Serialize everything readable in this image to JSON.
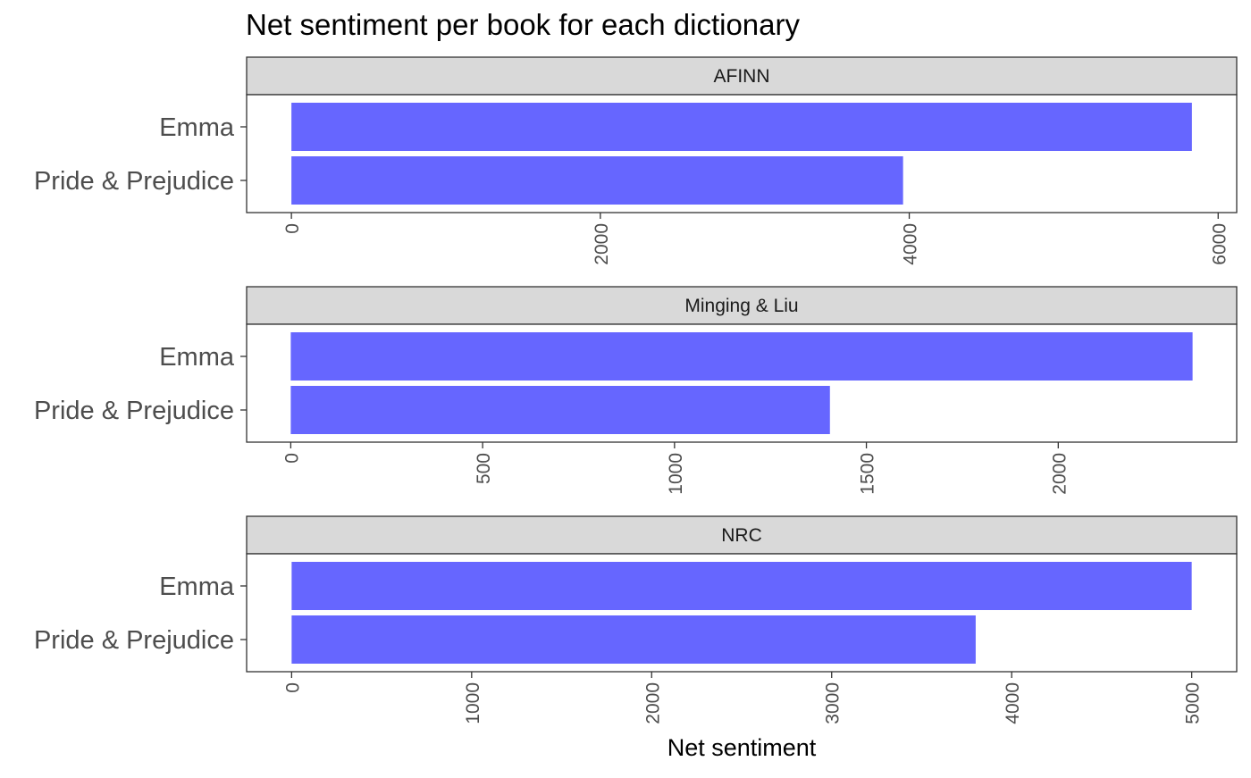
{
  "chart_data": {
    "type": "bar",
    "orientation": "horizontal",
    "title": "Net sentiment per book for each dictionary",
    "xlabel": "Net sentiment",
    "ylabel": "",
    "bar_color": "#6666ff",
    "strip_fill": "#d9d9d9",
    "grid": false,
    "categories": [
      "Emma",
      "Pride & Prejudice"
    ],
    "facets": [
      {
        "label": "AFINN",
        "values": [
          5830,
          3960
        ],
        "ticks": [
          0,
          2000,
          4000,
          6000
        ],
        "xlim": [
          -290,
          6120
        ]
      },
      {
        "label": "Minging & Liu",
        "values": [
          2350,
          1405
        ],
        "ticks": [
          0,
          500,
          1000,
          1500,
          2000
        ],
        "xlim": [
          -115,
          2465
        ]
      },
      {
        "label": "NRC",
        "values": [
          5000,
          3800
        ],
        "ticks": [
          0,
          1000,
          2000,
          3000,
          4000,
          5000
        ],
        "xlim": [
          -250,
          5250
        ]
      }
    ]
  }
}
